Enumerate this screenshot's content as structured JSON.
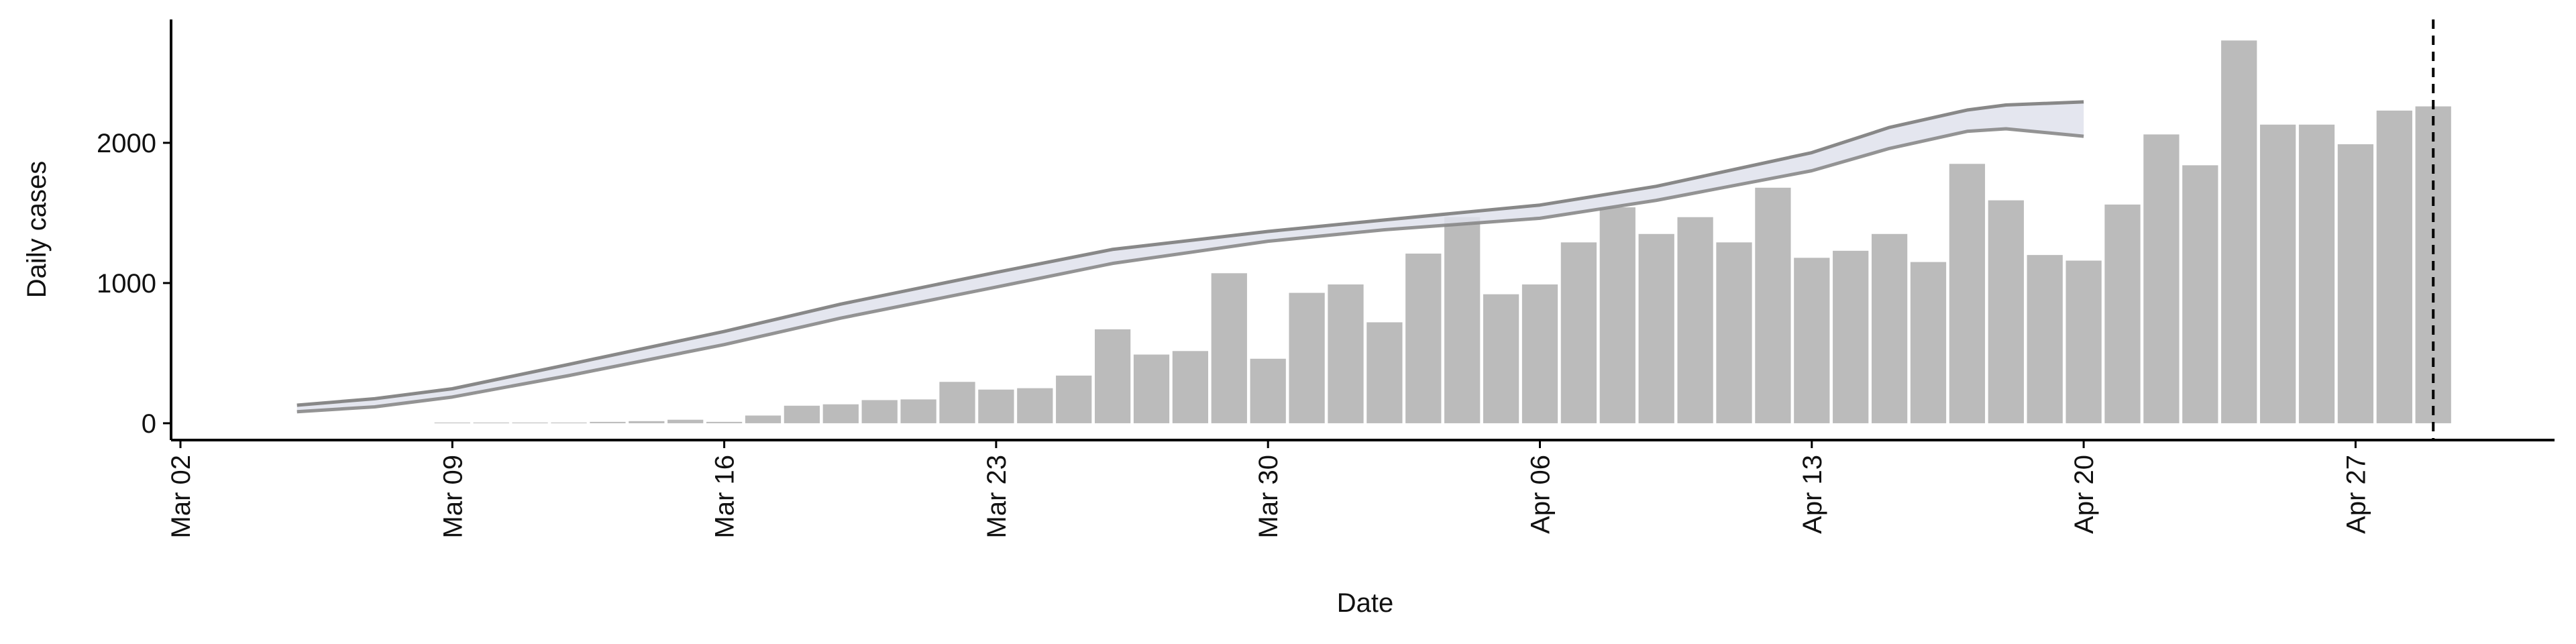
{
  "chart_data": {
    "type": "bar",
    "xlabel": "Date",
    "ylabel": "Daily cases",
    "x": [
      "Mar 09",
      "Mar 10",
      "Mar 11",
      "Mar 12",
      "Mar 13",
      "Mar 14",
      "Mar 15",
      "Mar 16",
      "Mar 17",
      "Mar 18",
      "Mar 19",
      "Mar 20",
      "Mar 21",
      "Mar 22",
      "Mar 23",
      "Mar 24",
      "Mar 25",
      "Mar 26",
      "Mar 27",
      "Mar 28",
      "Mar 29",
      "Mar 30",
      "Mar 31",
      "Apr 01",
      "Apr 02",
      "Apr 03",
      "Apr 04",
      "Apr 05",
      "Apr 06",
      "Apr 07",
      "Apr 08",
      "Apr 09",
      "Apr 10",
      "Apr 11",
      "Apr 12",
      "Apr 13",
      "Apr 14",
      "Apr 15",
      "Apr 16",
      "Apr 17",
      "Apr 18",
      "Apr 19",
      "Apr 20",
      "Apr 21",
      "Apr 22",
      "Apr 23",
      "Apr 24",
      "Apr 25",
      "Apr 26",
      "Apr 27",
      "Apr 28",
      "Apr 29"
    ],
    "values": [
      5,
      5,
      5,
      5,
      10,
      15,
      25,
      10,
      55,
      125,
      135,
      165,
      170,
      295,
      240,
      250,
      340,
      670,
      490,
      515,
      1070,
      460,
      930,
      990,
      720,
      1210,
      1470,
      920,
      990,
      1290,
      1540,
      1350,
      1470,
      1290,
      1680,
      1180,
      1230,
      1350,
      1150,
      1850,
      1590,
      1200,
      1160,
      1560,
      2060,
      1840,
      2730,
      2130,
      2130,
      1990,
      2230,
      2260
    ],
    "color": "#bbbbbb",
    "model": {
      "x": [
        "Mar 05",
        "Mar 07",
        "Mar 09",
        "Mar 12",
        "Mar 16",
        "Mar 19",
        "Mar 23",
        "Mar 26",
        "Mar 30",
        "Apr 02",
        "Apr 06",
        "Apr 09",
        "Apr 13",
        "Apr 15",
        "Apr 17",
        "Apr 18",
        "Apr 20"
      ],
      "lower": [
        82,
        117,
        187,
        340,
        561,
        750,
        971,
        1140,
        1298,
        1380,
        1462,
        1590,
        1801,
        1960,
        2082,
        2100,
        2047
      ],
      "upper": [
        129,
        175,
        246,
        420,
        655,
        850,
        1076,
        1240,
        1368,
        1450,
        1556,
        1690,
        1930,
        2110,
        2234,
        2270,
        2292
      ],
      "color": "#888888",
      "fill": "#dfe2ec"
    },
    "vline_x": "Apr 29",
    "xticks": [
      "Mar 02",
      "Mar 09",
      "Mar 16",
      "Mar 23",
      "Mar 30",
      "Apr 06",
      "Apr 13",
      "Apr 20",
      "Apr 27"
    ],
    "ylim": [
      -120,
      2880
    ],
    "yticks": [
      0,
      1000,
      2000
    ]
  }
}
